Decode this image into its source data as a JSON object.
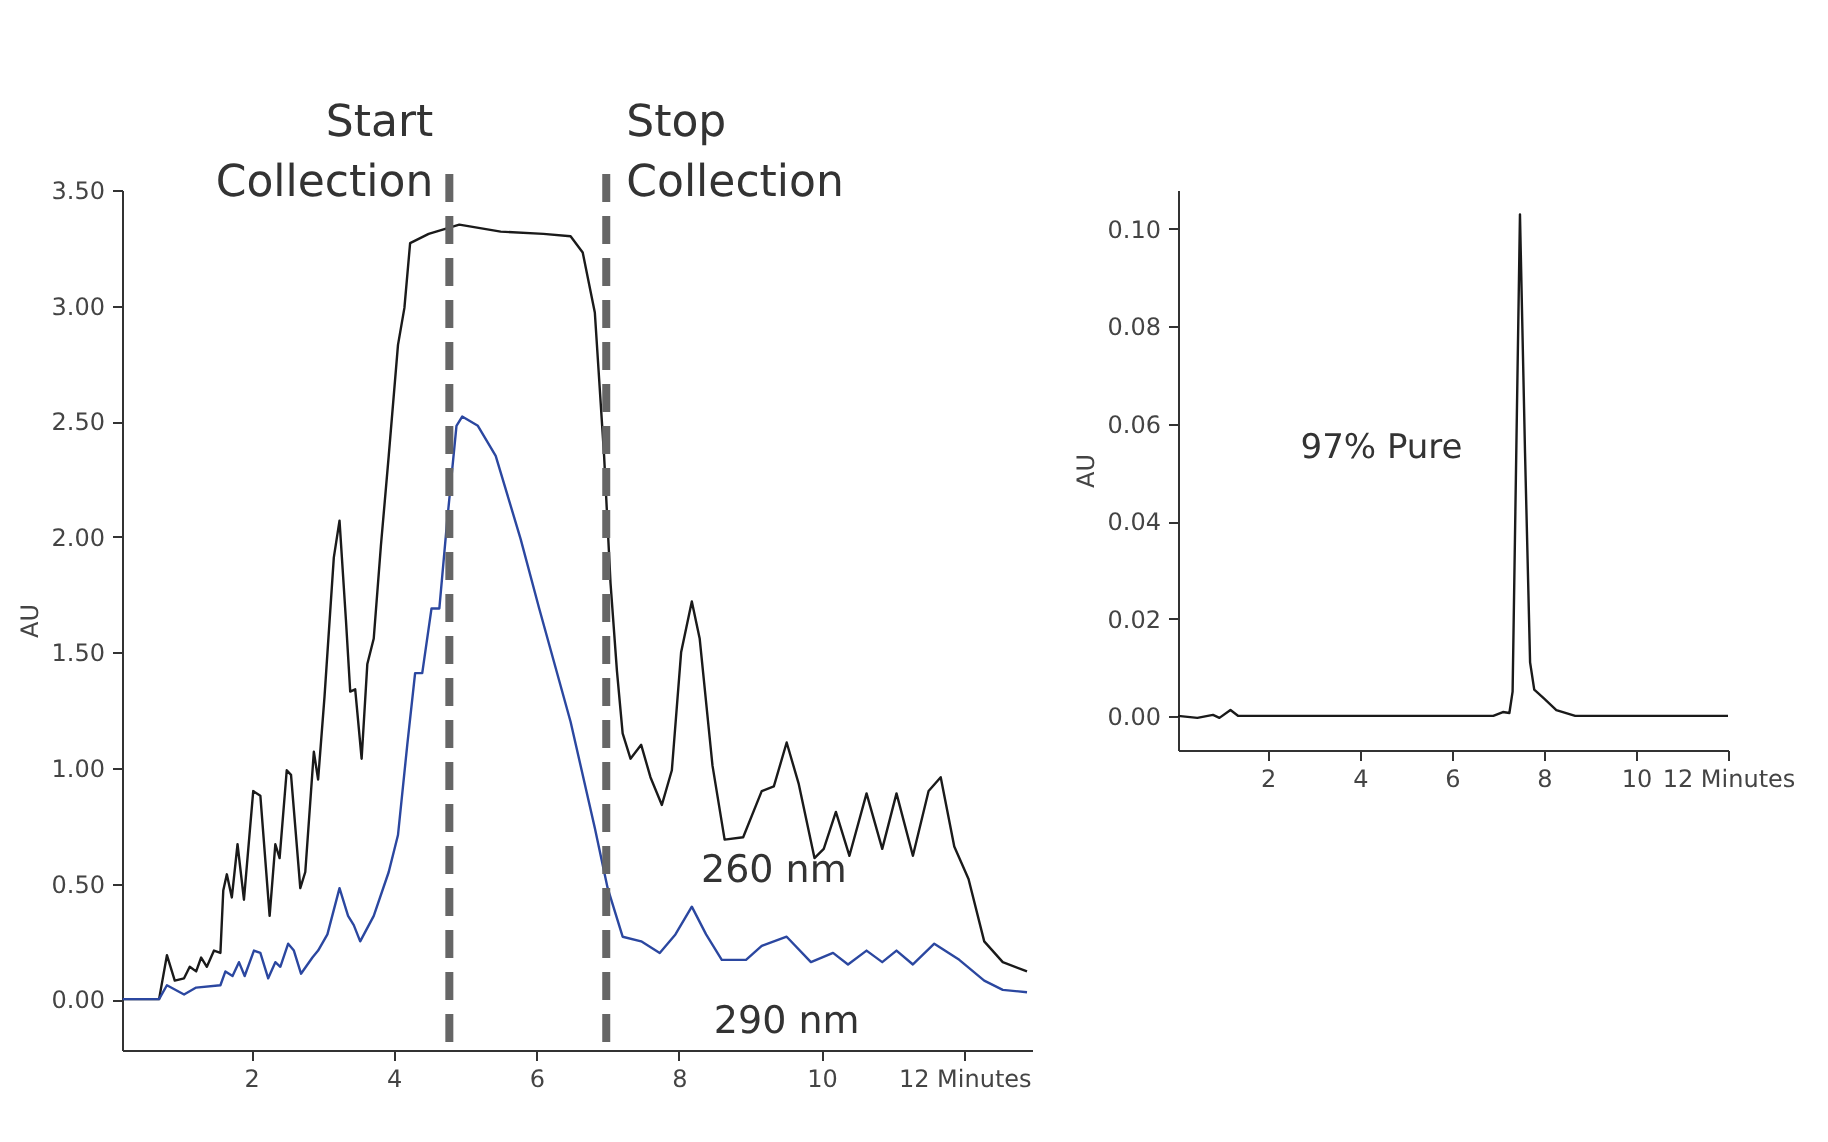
{
  "chart_data": [
    {
      "type": "line",
      "ylabel": "AU",
      "xlim": [
        0.19,
        12.95
      ],
      "ylim": [
        -0.22,
        3.5
      ],
      "xticks": [
        2,
        4,
        6,
        8,
        10,
        {
          "value": 12,
          "label": "12 Minutes"
        }
      ],
      "yticks": [
        {
          "value": 0,
          "label": "0.00"
        },
        {
          "value": 0.5,
          "label": "0.50"
        },
        {
          "value": 1,
          "label": "1.00"
        },
        {
          "value": 1.5,
          "label": "1.50"
        },
        {
          "value": 2,
          "label": "2.00"
        },
        {
          "value": 2.5,
          "label": "2.50"
        },
        {
          "value": 3,
          "label": "3.00"
        },
        {
          "value": 3.5,
          "label": "3.50"
        }
      ],
      "series": [
        {
          "name": "260 nm",
          "color": "#1a1a1a",
          "x": [
            0.2,
            0.71,
            0.82,
            0.93,
            1.06,
            1.14,
            1.23,
            1.3,
            1.38,
            1.48,
            1.57,
            1.61,
            1.66,
            1.73,
            1.81,
            1.9,
            2.03,
            2.13,
            2.26,
            2.34,
            2.4,
            2.5,
            2.56,
            2.69,
            2.76,
            2.88,
            2.94,
            3.03,
            3.16,
            3.24,
            3.33,
            3.39,
            3.46,
            3.55,
            3.63,
            3.72,
            3.82,
            3.93,
            4.06,
            4.15,
            4.23,
            4.49,
            4.92,
            5.5,
            6.1,
            6.48,
            6.65,
            6.82,
            6.95,
            7.04,
            7.13,
            7.21,
            7.32,
            7.47,
            7.6,
            7.76,
            7.9,
            8.03,
            8.18,
            8.29,
            8.47,
            8.64,
            8.9,
            9.16,
            9.33,
            9.51,
            9.68,
            9.9,
            10.03,
            10.2,
            10.39,
            10.63,
            10.85,
            11.05,
            11.28,
            11.5,
            11.67,
            11.86,
            12.06,
            12.28,
            12.54,
            12.88
          ],
          "values": [
            0,
            0,
            0.19,
            0.08,
            0.09,
            0.14,
            0.12,
            0.18,
            0.14,
            0.21,
            0.2,
            0.47,
            0.54,
            0.44,
            0.67,
            0.43,
            0.9,
            0.88,
            0.36,
            0.67,
            0.61,
            0.99,
            0.97,
            0.48,
            0.55,
            1.07,
            0.95,
            1.31,
            1.91,
            2.07,
            1.64,
            1.33,
            1.34,
            1.04,
            1.45,
            1.56,
            1.96,
            2.35,
            2.83,
            2.99,
            3.27,
            3.31,
            3.35,
            3.32,
            3.31,
            3.3,
            3.23,
            2.97,
            2.35,
            1.8,
            1.42,
            1.15,
            1.04,
            1.1,
            0.96,
            0.84,
            0.99,
            1.5,
            1.72,
            1.56,
            1.01,
            0.69,
            0.7,
            0.9,
            0.92,
            1.11,
            0.93,
            0.61,
            0.65,
            0.81,
            0.62,
            0.89,
            0.65,
            0.89,
            0.62,
            0.9,
            0.96,
            0.66,
            0.52,
            0.25,
            0.16,
            0.12
          ]
        },
        {
          "name": "290 nm",
          "color": "#2b47a0",
          "x": [
            0.2,
            0.71,
            0.82,
            1.06,
            1.23,
            1.57,
            1.64,
            1.74,
            1.83,
            1.91,
            2.04,
            2.13,
            2.24,
            2.34,
            2.41,
            2.52,
            2.6,
            2.7,
            2.86,
            2.94,
            3.07,
            3.24,
            3.36,
            3.44,
            3.53,
            3.72,
            3.93,
            4.06,
            4.19,
            4.3,
            4.4,
            4.53,
            4.64,
            4.75,
            4.88,
            4.96,
            5.18,
            5.43,
            5.78,
            6.04,
            6.48,
            6.82,
            7.0,
            7.21,
            7.47,
            7.73,
            7.95,
            8.18,
            8.38,
            8.6,
            8.94,
            9.16,
            9.51,
            9.85,
            10.16,
            10.37,
            10.63,
            10.85,
            11.05,
            11.28,
            11.58,
            11.93,
            12.28,
            12.54,
            12.88
          ],
          "values": [
            0,
            0,
            0.06,
            0.02,
            0.05,
            0.06,
            0.12,
            0.1,
            0.16,
            0.1,
            0.21,
            0.2,
            0.09,
            0.16,
            0.14,
            0.24,
            0.21,
            0.11,
            0.18,
            0.21,
            0.28,
            0.48,
            0.36,
            0.32,
            0.25,
            0.36,
            0.55,
            0.71,
            1.1,
            1.41,
            1.41,
            1.69,
            1.69,
            2.07,
            2.48,
            2.52,
            2.48,
            2.35,
            1.99,
            1.69,
            1.2,
            0.74,
            0.48,
            0.27,
            0.25,
            0.2,
            0.28,
            0.4,
            0.28,
            0.17,
            0.17,
            0.23,
            0.27,
            0.16,
            0.2,
            0.15,
            0.21,
            0.16,
            0.21,
            0.15,
            0.24,
            0.17,
            0.08,
            0.04,
            0.03
          ]
        }
      ],
      "ref_lines": [
        {
          "axis": "x",
          "value": 4.78,
          "label": "Start Collection",
          "color": "#666666",
          "line_style": "dashed"
        },
        {
          "axis": "x",
          "value": 6.98,
          "label": "Stop Collection",
          "color": "#666666",
          "line_style": "dashed"
        }
      ],
      "grid": false,
      "legend": false
    },
    {
      "type": "line",
      "ylabel": "AU",
      "xlim": [
        0.05,
        12
      ],
      "ylim": [
        -0.007,
        0.108
      ],
      "xticks": [
        2,
        4,
        6,
        8,
        10,
        {
          "value": 12,
          "label": "12 Minutes"
        }
      ],
      "yticks": [
        {
          "value": 0,
          "label": "0.00"
        },
        {
          "value": 0.02,
          "label": "0.02"
        },
        {
          "value": 0.04,
          "label": "0.04"
        },
        {
          "value": 0.06,
          "label": "0.06"
        },
        {
          "value": 0.08,
          "label": "0.08"
        },
        {
          "value": 0.1,
          "label": "0.10"
        }
      ],
      "series": [
        {
          "color": "#1a1a1a",
          "x": [
            0.05,
            0.47,
            0.81,
            0.95,
            1.19,
            1.36,
            6.9,
            7.11,
            7.25,
            7.32,
            7.38,
            7.48,
            7.59,
            7.7,
            7.79,
            8.0,
            8.27,
            8.68,
            12
          ],
          "values": [
            0,
            -0.0004,
            0.0002,
            -0.0004,
            0.0012,
            0,
            0,
            0.0008,
            0.0006,
            0.005,
            0.042,
            0.103,
            0.054,
            0.011,
            0.0054,
            0.0036,
            0.0012,
            0,
            0
          ]
        }
      ],
      "annotations": [
        "97% Pure"
      ],
      "grid": false,
      "legend": false
    }
  ]
}
